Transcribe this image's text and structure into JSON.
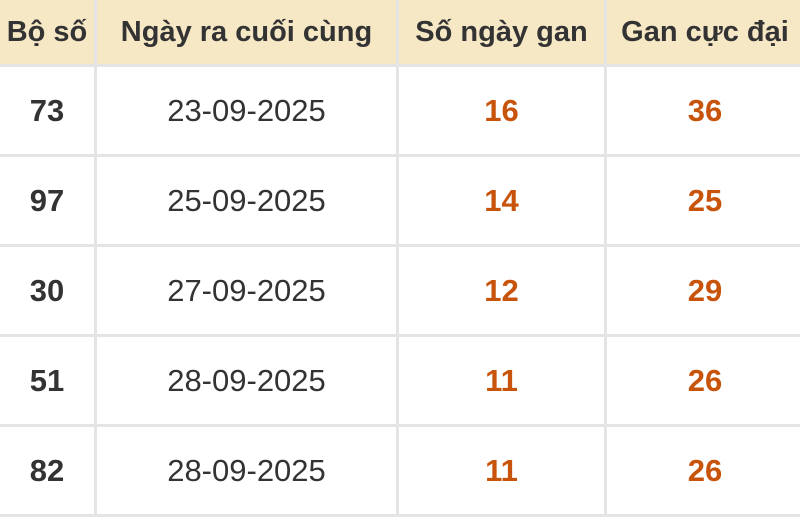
{
  "colors": {
    "header_bg": "#f6e7c5",
    "highlight": "#c8540c",
    "text": "#333333"
  },
  "table": {
    "headers": [
      "Bộ số",
      "Ngày ra cuối cùng",
      "Số ngày gan",
      "Gan cực đại"
    ],
    "rows": [
      [
        "73",
        "23-09-2025",
        "16",
        "36"
      ],
      [
        "97",
        "25-09-2025",
        "14",
        "25"
      ],
      [
        "30",
        "27-09-2025",
        "12",
        "29"
      ],
      [
        "51",
        "28-09-2025",
        "11",
        "26"
      ],
      [
        "82",
        "28-09-2025",
        "11",
        "26"
      ]
    ]
  }
}
